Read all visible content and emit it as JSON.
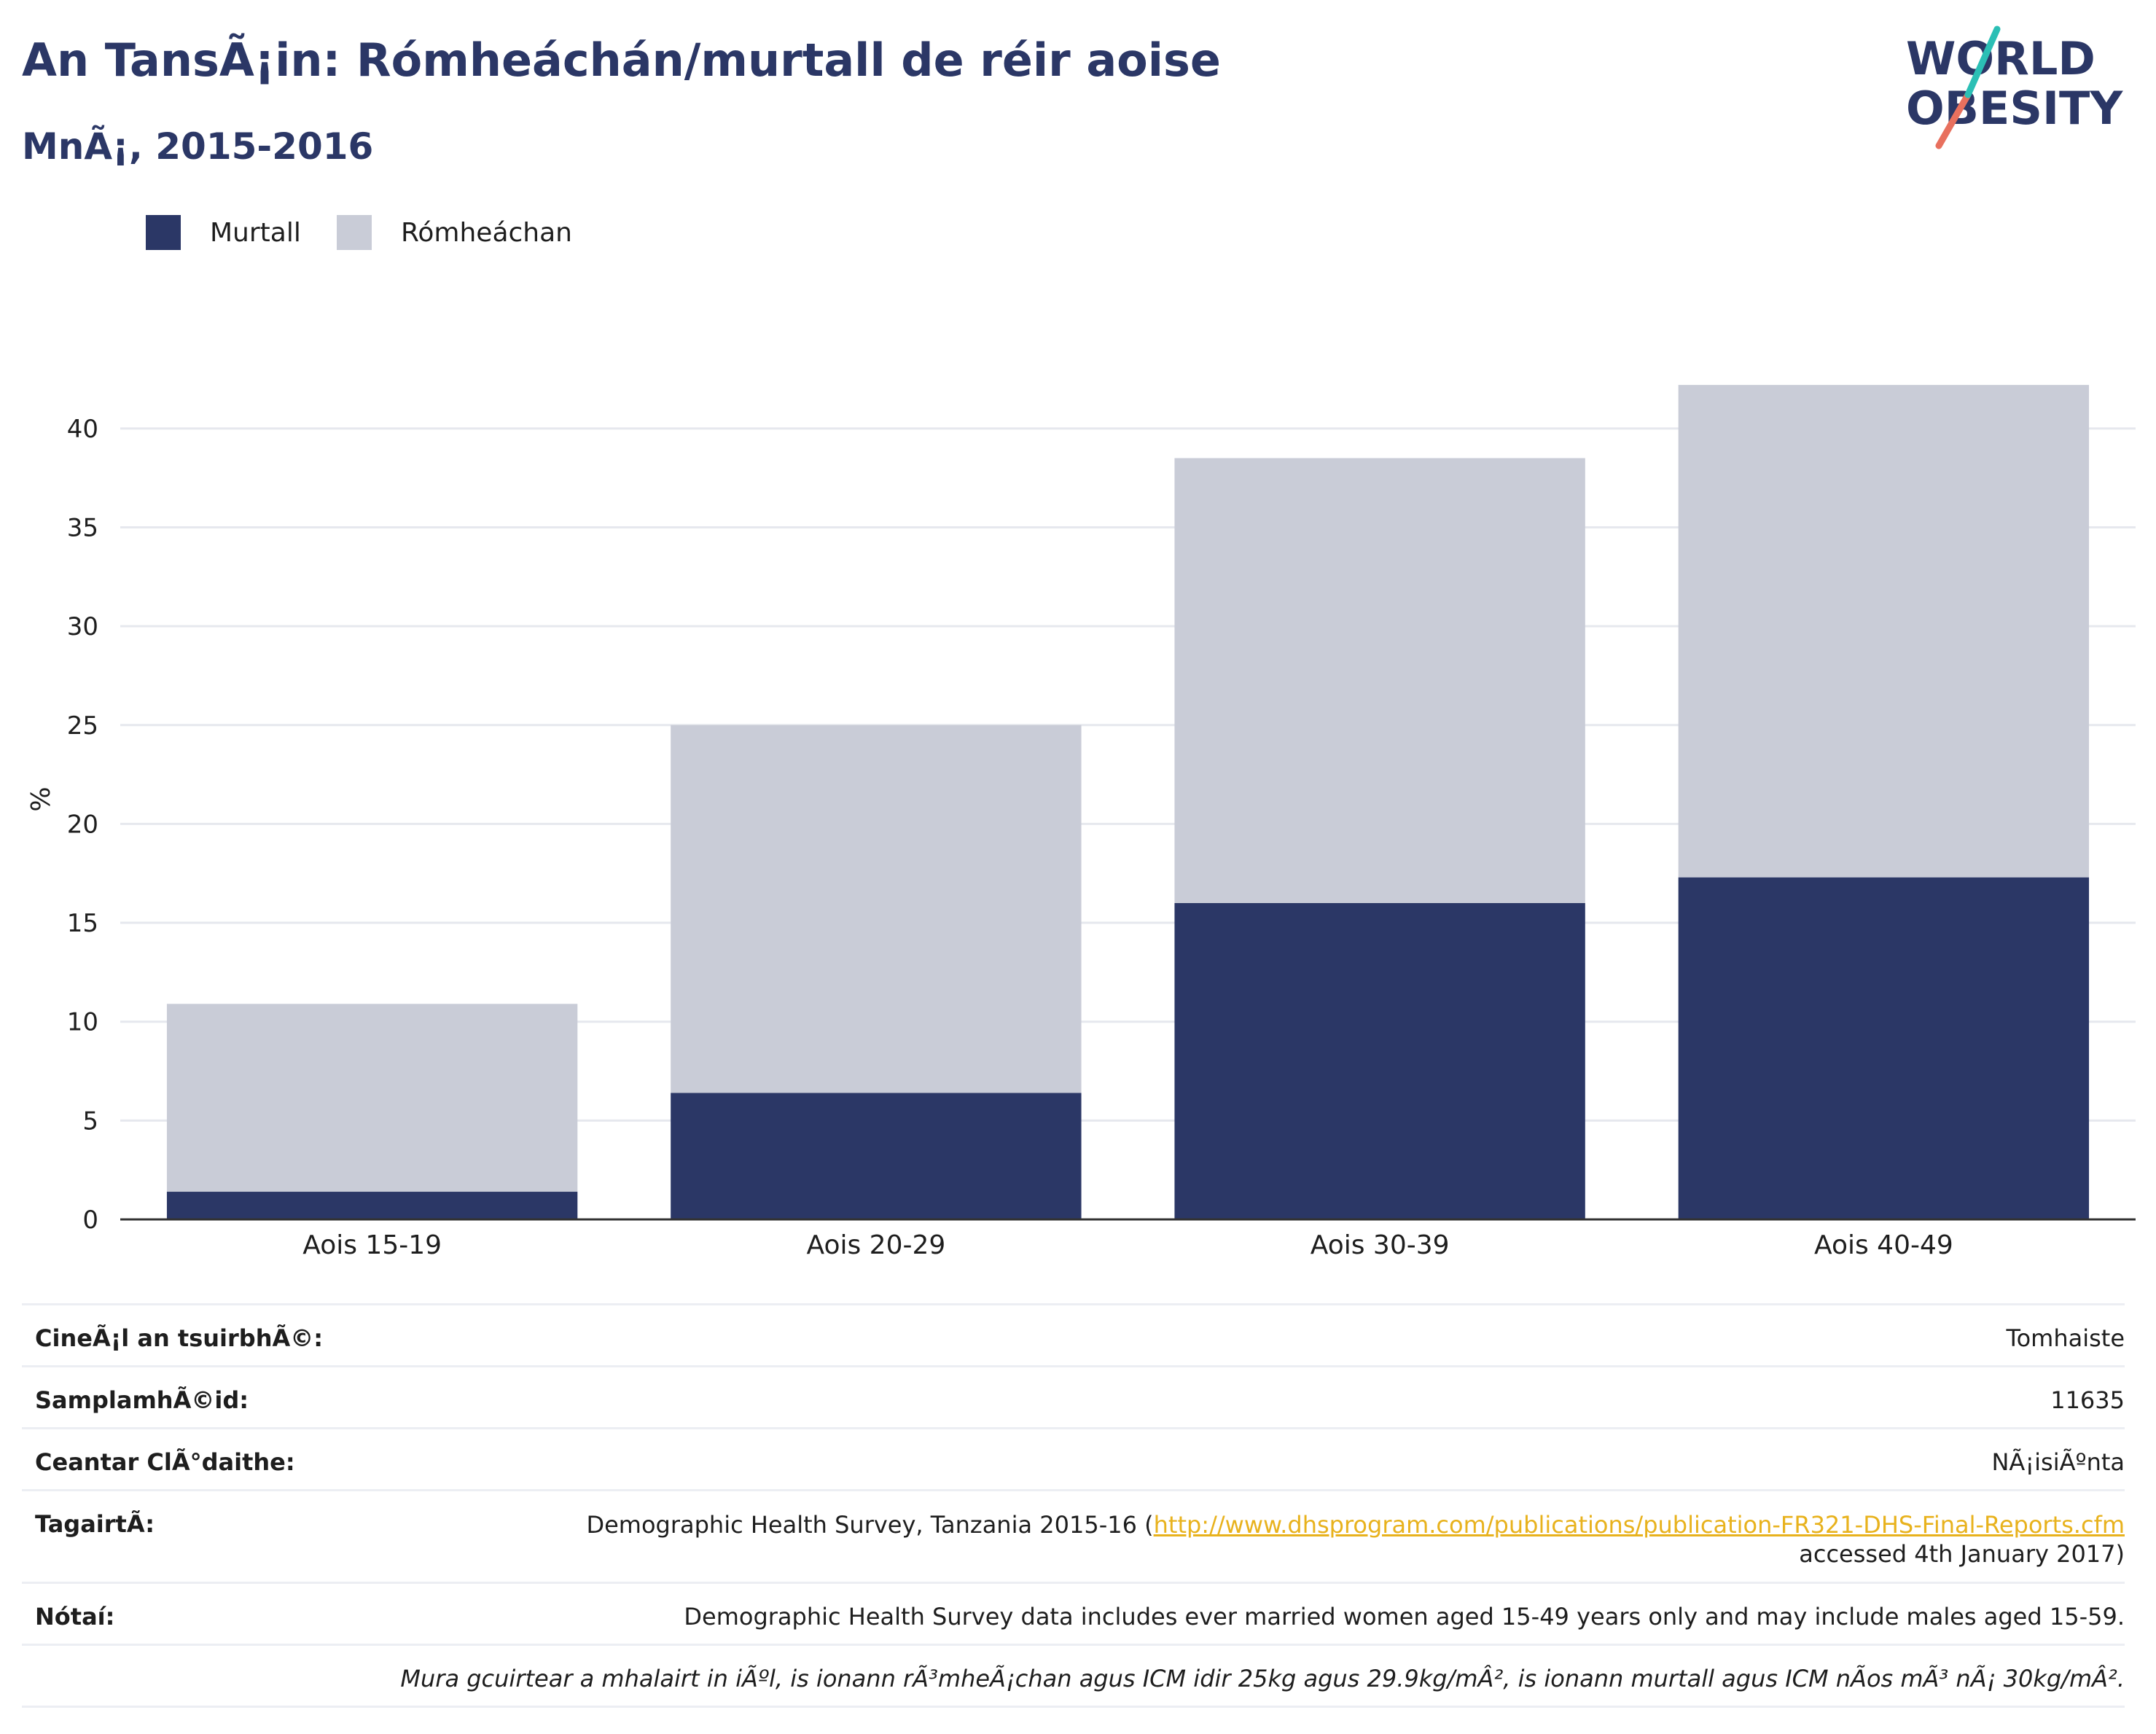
{
  "title": "An TansÃ¡in: Rómheáchán/murtall de réir aoise",
  "subtitle": "MnÃ¡, 2015-2016",
  "logo": {
    "line1": "WORLD",
    "line2": "OBESITY"
  },
  "legend": [
    {
      "label": "Murtall",
      "color": "#2b3766"
    },
    {
      "label": "Rómheáchan",
      "color": "#c9ccd7"
    }
  ],
  "chart_data": {
    "type": "bar",
    "stacked": true,
    "categories": [
      "Aois 15-19",
      "Aois 20-29",
      "Aois 30-39",
      "Aois 40-49"
    ],
    "series": [
      {
        "name": "Murtall",
        "color": "#2b3766",
        "values": [
          1.4,
          6.4,
          16.0,
          17.3
        ]
      },
      {
        "name": "Rómheáchan",
        "color": "#c9ccd7",
        "values": [
          9.5,
          18.6,
          22.5,
          24.9
        ]
      }
    ],
    "ylabel": "%",
    "ylim": [
      0,
      42.5
    ],
    "yticks": [
      0,
      5,
      10,
      15,
      20,
      25,
      30,
      35,
      40
    ],
    "grid": true,
    "legend_position": "top-left"
  },
  "info": {
    "survey_type": {
      "label": "CineÃ¡l an tsuirbhÃ©:",
      "value": "Tomhaiste"
    },
    "sample_size": {
      "label": "SamplamhÃ©id:",
      "value": "11635"
    },
    "area": {
      "label": "Ceantar ClÃ°daithe:",
      "value": "NÃ¡isiÃºnta"
    },
    "reference": {
      "label": "TagairtÃ:",
      "text": "Demographic Health Survey, Tanzania 2015-16 (",
      "link": "http://www.dhsprogram.com/publications/publication-FR321-DHS-Final-Reports.cfm",
      "after": "accessed 4th January 2017)"
    },
    "notes": {
      "label": "Nótaí:",
      "value": "Demographic Health Survey data includes ever married women aged 15-49 years only and may include males aged 15-59."
    },
    "definition": "Mura gcuirtear a mhalairt in iÃºl, is ionann rÃ³mheÃ¡chan agus ICM idir 25kg agus 29.9kg/mÂ², is ionann murtall agus ICM nÃos mÃ³ nÃ¡ 30kg/mÂ²."
  }
}
